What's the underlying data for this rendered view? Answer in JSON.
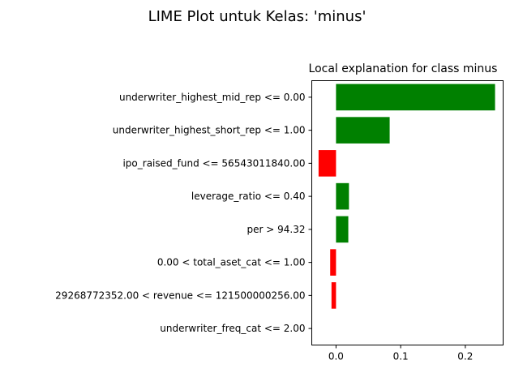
{
  "figure": {
    "suptitle": "LIME Plot untuk Kelas: 'minus'"
  },
  "chart_data": {
    "type": "bar",
    "orientation": "horizontal",
    "title": "Local explanation for class minus",
    "xlabel": "",
    "ylabel": "",
    "xlim": [
      -0.0375,
      0.2585
    ],
    "xticks": [
      0.0,
      0.1,
      0.2
    ],
    "xtick_labels": [
      "0.0",
      "0.1",
      "0.2"
    ],
    "grid": false,
    "positive_color": "#008000",
    "negative_color": "#ff0000",
    "categories": [
      "underwriter_highest_mid_rep <= 0.00",
      "underwriter_highest_short_rep <= 1.00",
      "ipo_raised_fund <= 56543011840.00",
      "leverage_ratio <= 0.40",
      "per > 94.32",
      "0.00 < total_aset_cat <= 1.00",
      "29268772352.00 < revenue <= 121500000256.00",
      "underwriter_freq_cat <= 2.00"
    ],
    "values": [
      0.246,
      0.083,
      -0.027,
      0.02,
      0.019,
      -0.009,
      -0.007,
      0.0
    ]
  }
}
